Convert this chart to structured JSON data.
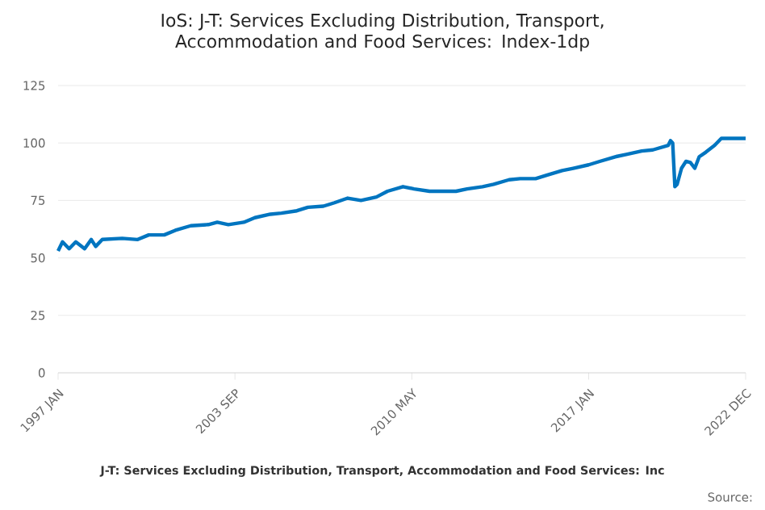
{
  "chart_data": {
    "type": "line",
    "title": "IoS: J-T: Services Excluding Distribution, Transport, Accommodation and Food Services: Index-1dp",
    "x": [
      "1997-01",
      "1997-03",
      "1997-06",
      "1997-09",
      "1998-01",
      "1998-04",
      "1998-06",
      "1998-09",
      "1999-06",
      "2000-01",
      "2000-06",
      "2001-01",
      "2001-06",
      "2002-01",
      "2002-09",
      "2003-01",
      "2003-06",
      "2004-01",
      "2004-06",
      "2005-01",
      "2005-06",
      "2006-01",
      "2006-06",
      "2007-01",
      "2007-06",
      "2007-12",
      "2008-06",
      "2009-01",
      "2009-06",
      "2010-01",
      "2010-06",
      "2011-01",
      "2011-06",
      "2012-01",
      "2012-06",
      "2013-01",
      "2013-06",
      "2014-01",
      "2014-06",
      "2015-01",
      "2015-06",
      "2016-01",
      "2016-06",
      "2017-01",
      "2017-06",
      "2018-01",
      "2018-06",
      "2019-01",
      "2019-06",
      "2020-01",
      "2020-02",
      "2020-03",
      "2020-04",
      "2020-05",
      "2020-07",
      "2020-09",
      "2020-11",
      "2021-01",
      "2021-03",
      "2021-06",
      "2021-10",
      "2022-01",
      "2022-06",
      "2022-12"
    ],
    "series": [
      {
        "color": "#0075c0",
        "values": [
          53,
          57,
          54,
          57,
          54,
          58,
          55,
          58,
          58.5,
          58,
          60,
          60,
          62,
          64,
          64.5,
          65.5,
          64.5,
          65.5,
          67.5,
          69,
          69.5,
          70.5,
          72,
          72.5,
          74,
          76,
          75,
          76.5,
          79,
          81,
          80,
          79,
          79,
          79,
          80,
          81,
          82,
          84,
          84.5,
          84.5,
          86,
          88,
          89,
          90.5,
          92,
          94,
          95,
          96.5,
          97,
          99,
          101,
          100,
          81,
          82,
          89,
          92,
          91.5,
          89,
          94,
          96,
          99,
          102,
          102,
          102
        ]
      }
    ],
    "xlim": [
      "1997-01",
      "2022-12"
    ],
    "xticks": [
      {
        "value": "1997-01",
        "label": "1997 JAN"
      },
      {
        "value": "2003-09",
        "label": "2003 SEP"
      },
      {
        "value": "2010-05",
        "label": "2010 MAY"
      },
      {
        "value": "2017-01",
        "label": "2017 JAN"
      },
      {
        "value": "2022-12",
        "label": "2022 DEC"
      }
    ],
    "ylim": [
      0,
      125
    ],
    "yticks": [
      0,
      25,
      50,
      75,
      100,
      125
    ],
    "grid": "y",
    "line_style": "solid",
    "annotations": [
      "J-T: Services Excluding Distribution, Transport, Accommodation and Food Services: Inc",
      "Source:"
    ]
  }
}
